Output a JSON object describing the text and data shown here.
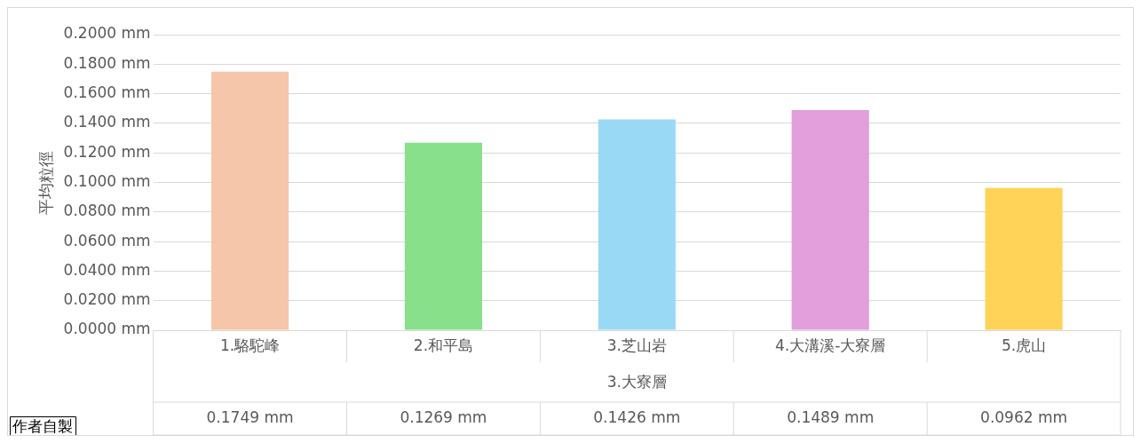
{
  "chart_data": {
    "type": "bar",
    "ylabel": "平均粒徑",
    "xlabel": "3.大寮層",
    "categories": [
      "1.駱駝峰",
      "2.和平島",
      "3.芝山岩",
      "4.大溝溪-大寮層",
      "5.虎山"
    ],
    "values": [
      0.1749,
      0.1269,
      0.1426,
      0.1489,
      0.0962
    ],
    "colors": [
      "#f5c6aa",
      "#88e08b",
      "#99d9f5",
      "#e39edc",
      "#ffd258"
    ],
    "value_labels": [
      "0.1749 mm",
      "0.1269 mm",
      "0.1426 mm",
      "0.1489 mm",
      "0.0962 mm"
    ],
    "ylim": [
      0,
      0.2
    ],
    "yticks": [
      {
        "value": 0,
        "label": "0.0000 mm"
      },
      {
        "value": 0.02,
        "label": "0.0200 mm"
      },
      {
        "value": 0.04,
        "label": "0.0400 mm"
      },
      {
        "value": 0.06,
        "label": "0.0600 mm"
      },
      {
        "value": 0.08,
        "label": "0.0800 mm"
      },
      {
        "value": 0.1,
        "label": "0.1000 mm"
      },
      {
        "value": 0.12,
        "label": "0.1200 mm"
      },
      {
        "value": 0.14,
        "label": "0.1400 mm"
      },
      {
        "value": 0.16,
        "label": "0.1600 mm"
      },
      {
        "value": 0.18,
        "label": "0.1800 mm"
      },
      {
        "value": 0.2,
        "label": "0.2000 mm"
      }
    ],
    "grid": "y",
    "legend": false,
    "annotations": [
      "作者自製"
    ]
  }
}
